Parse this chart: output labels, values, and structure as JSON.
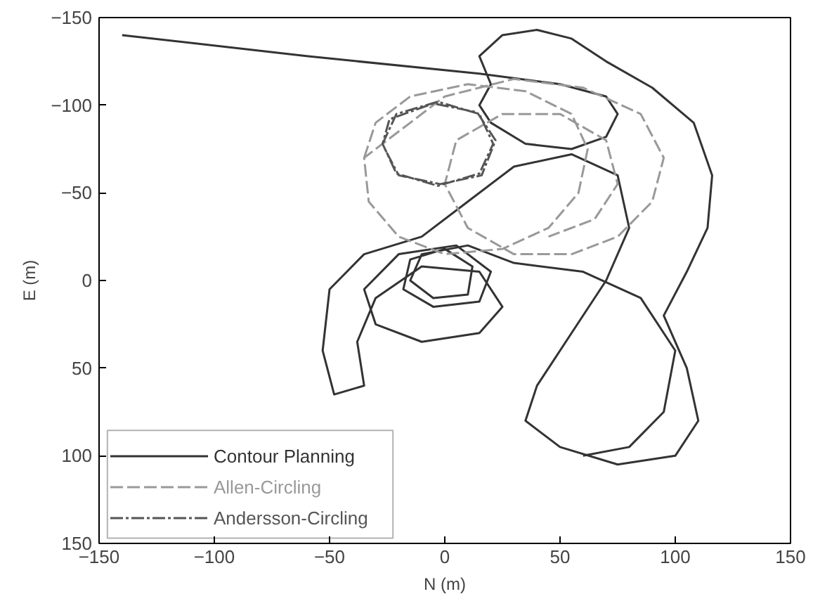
{
  "chart_data": {
    "type": "line",
    "xlabel": "N (m)",
    "ylabel": "E (m)",
    "xlim": [
      -150,
      150
    ],
    "ylim": [
      150,
      -150
    ],
    "xticks": [
      -150,
      -100,
      -50,
      0,
      50,
      100,
      150
    ],
    "yticks": [
      -150,
      -100,
      -50,
      0,
      50,
      100,
      150
    ],
    "grid": false,
    "legend": "bottom left",
    "series": [
      {
        "name": "Contour Planning",
        "color": "#333333",
        "line_style": "solid",
        "x": [
          -140,
          -60,
          15,
          50,
          70,
          75,
          70,
          55,
          35,
          20,
          15,
          20,
          15,
          25,
          40,
          55,
          70,
          90,
          108,
          116,
          114,
          105,
          95,
          105,
          110,
          100,
          75,
          50,
          35,
          40,
          55,
          70,
          80,
          75,
          55,
          30,
          10,
          -10,
          -35,
          -50,
          -53,
          -48,
          -35,
          -38,
          -30,
          -10,
          15,
          25,
          15,
          -10,
          -30,
          -35,
          -20,
          5,
          20,
          15,
          -5,
          -18,
          -15,
          0,
          12,
          10,
          -5,
          -15,
          -10,
          10,
          30,
          60,
          85,
          100,
          95,
          80,
          60
        ],
        "values": [
          -140,
          -128,
          -118,
          -112,
          -105,
          -95,
          -82,
          -75,
          -78,
          -90,
          -100,
          -112,
          -128,
          -140,
          -143,
          -138,
          -125,
          -110,
          -90,
          -60,
          -30,
          -5,
          20,
          50,
          80,
          100,
          105,
          95,
          80,
          60,
          30,
          0,
          -30,
          -60,
          -72,
          -65,
          -45,
          -25,
          -15,
          5,
          40,
          65,
          60,
          35,
          10,
          -8,
          -5,
          15,
          30,
          35,
          25,
          5,
          -15,
          -20,
          -5,
          12,
          15,
          5,
          -12,
          -18,
          -8,
          8,
          10,
          0,
          -15,
          -20,
          -10,
          -5,
          10,
          40,
          75,
          95,
          100
        ]
      },
      {
        "name": "Allen-Circling",
        "color": "#999999",
        "line_style": "dashed",
        "x": [
          -35,
          -30,
          -15,
          10,
          35,
          55,
          62,
          58,
          45,
          25,
          0,
          -20,
          -33,
          -35,
          -20,
          0,
          30,
          60,
          85,
          95,
          90,
          75,
          55,
          30,
          10,
          0,
          5,
          25,
          50,
          70,
          75,
          65,
          45
        ],
        "values": [
          -70,
          -90,
          -105,
          -112,
          -108,
          -95,
          -75,
          -50,
          -30,
          -18,
          -15,
          -25,
          -45,
          -70,
          -85,
          -105,
          -115,
          -110,
          -95,
          -70,
          -45,
          -25,
          -15,
          -15,
          -30,
          -55,
          -80,
          -95,
          -95,
          -80,
          -55,
          -35,
          -25
        ]
      },
      {
        "name": "Andersson-Circling",
        "color": "#555555",
        "line_style": "dashdot",
        "x": [
          -27,
          -21,
          -3,
          15,
          21,
          15,
          -3,
          -21,
          -27,
          -24,
          -5,
          14,
          22,
          16,
          -2,
          -20,
          -26
        ],
        "values": [
          -78,
          -95,
          -102,
          -95,
          -78,
          -61,
          -54,
          -61,
          -78,
          -92,
          -101,
          -96,
          -80,
          -60,
          -55,
          -60,
          -75
        ]
      }
    ]
  }
}
